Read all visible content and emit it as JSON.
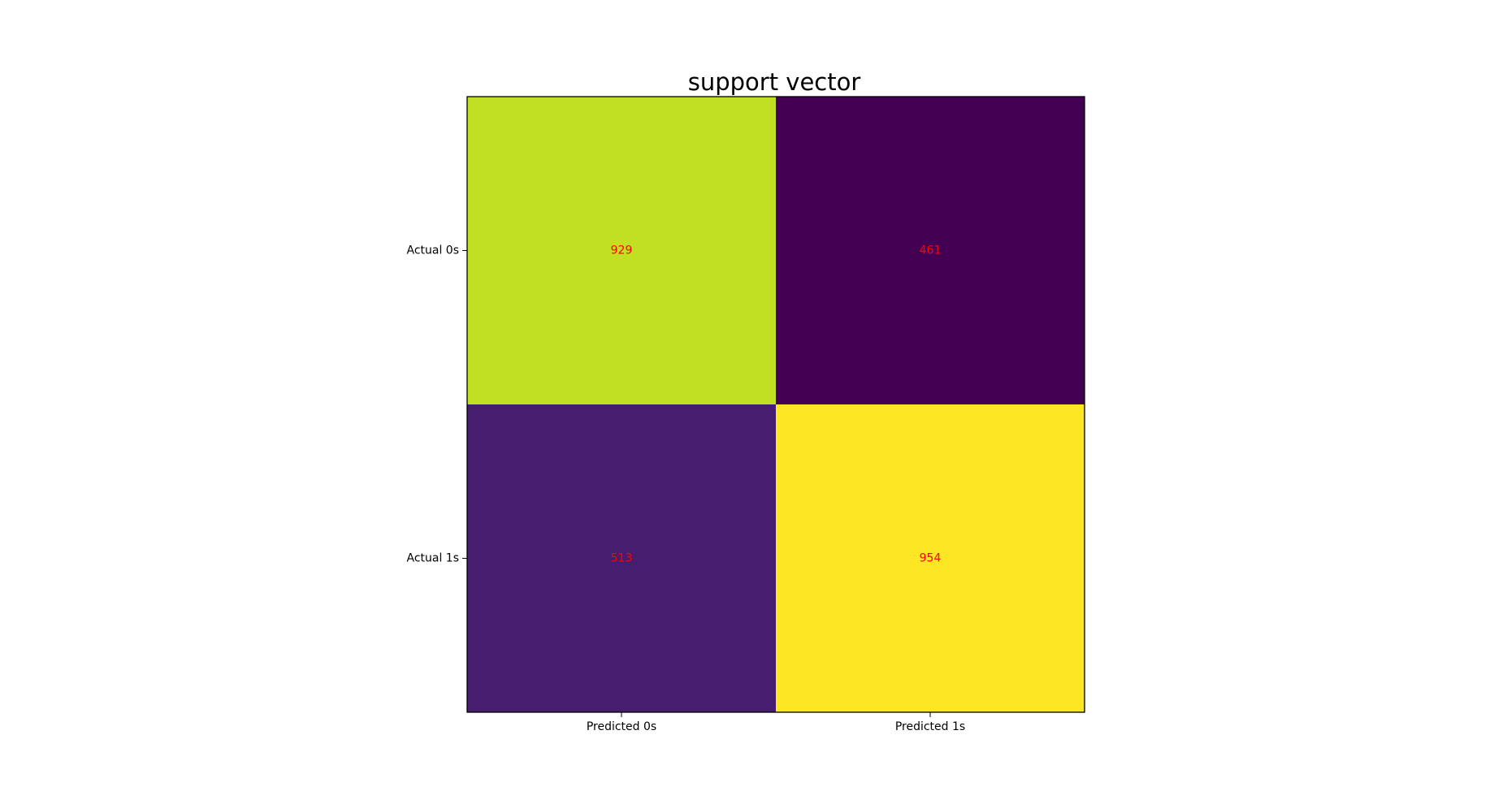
{
  "chart_data": {
    "type": "heatmap",
    "title": "support vector",
    "row_labels": [
      "Actual 0s",
      "Actual 1s"
    ],
    "col_labels": [
      "Predicted 0s",
      "Predicted 1s"
    ],
    "values": [
      [
        929,
        461
      ],
      [
        513,
        954
      ]
    ],
    "colormap": "viridis",
    "annotation_color": "#ff0000",
    "grid": false,
    "legend": "none"
  }
}
